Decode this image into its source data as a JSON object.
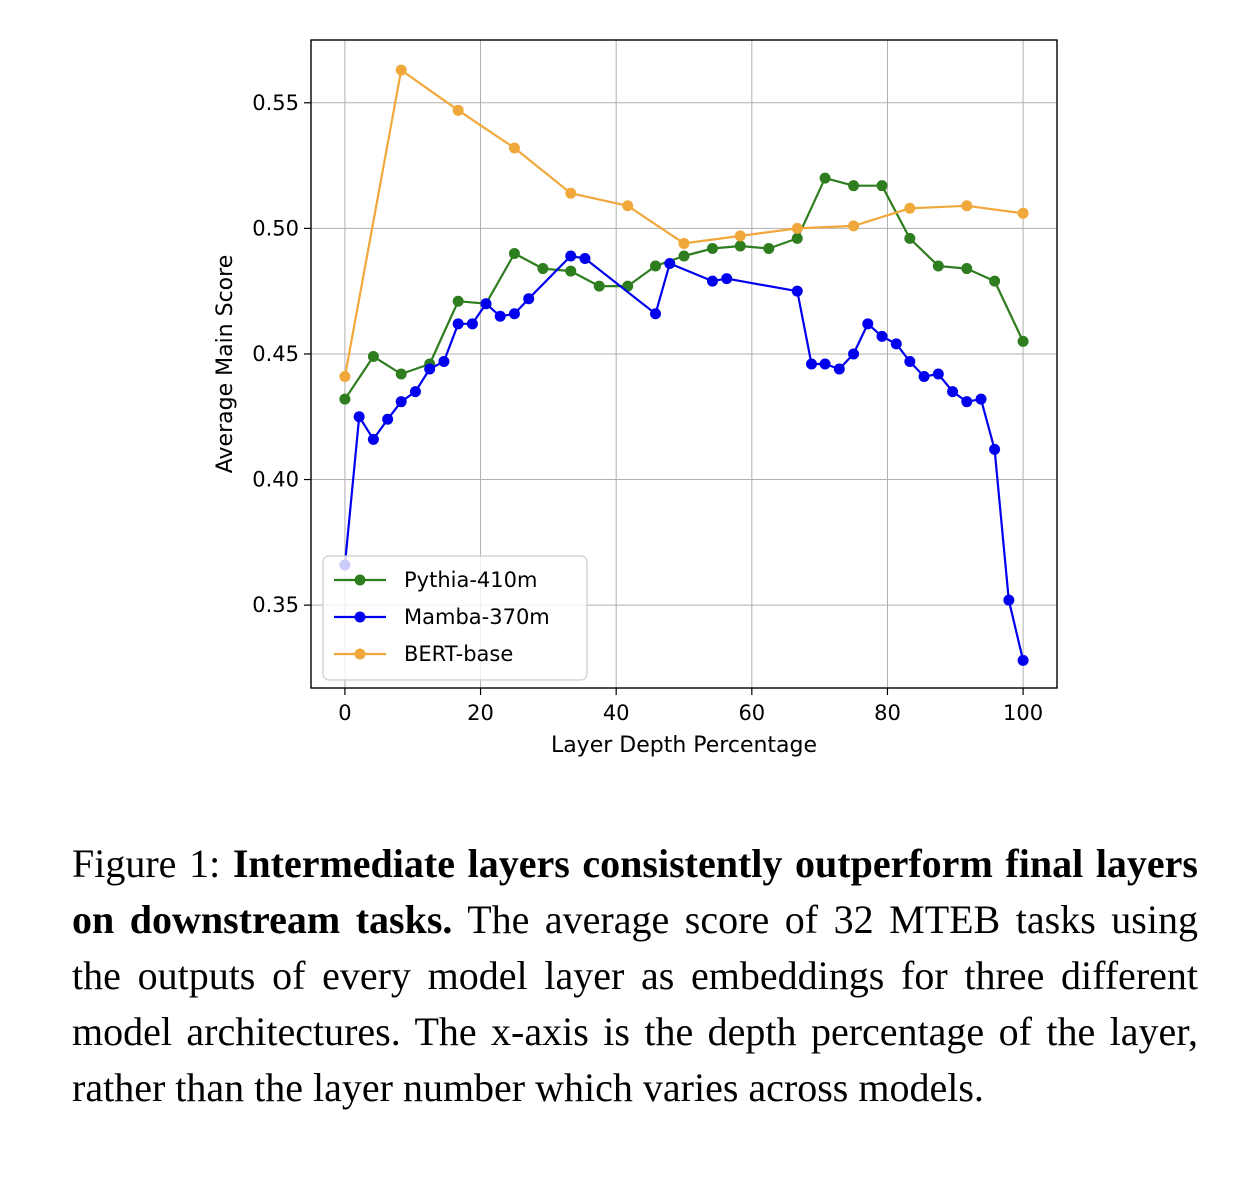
{
  "chart_data": {
    "type": "line",
    "xlabel": "Layer Depth Percentage",
    "ylabel": "Average Main Score",
    "xlim": [
      -5,
      105
    ],
    "ylim": [
      0.317,
      0.575
    ],
    "xticks": [
      0,
      20,
      40,
      60,
      80,
      100
    ],
    "yticks": [
      0.35,
      0.4,
      0.45,
      0.5,
      0.55
    ],
    "xtick_labels": [
      "0",
      "20",
      "40",
      "60",
      "80",
      "100"
    ],
    "ytick_labels": [
      "0.35",
      "0.40",
      "0.45",
      "0.50",
      "0.55"
    ],
    "grid": true,
    "legend_position": "lower-left",
    "series": [
      {
        "name": "Pythia-410m",
        "color": "#2e7d1f",
        "x": [
          0,
          4.2,
          8.3,
          12.5,
          16.7,
          20.8,
          25.0,
          29.2,
          33.3,
          37.5,
          41.7,
          45.8,
          50.0,
          54.2,
          58.3,
          62.5,
          66.7,
          70.8,
          75.0,
          79.2,
          83.3,
          87.5,
          91.7,
          95.8,
          100
        ],
        "y": [
          0.432,
          0.449,
          0.442,
          0.446,
          0.471,
          0.47,
          0.49,
          0.484,
          0.483,
          0.477,
          0.477,
          0.485,
          0.489,
          0.492,
          0.493,
          0.492,
          0.496,
          0.52,
          0.517,
          0.517,
          0.496,
          0.485,
          0.484,
          0.479,
          0.455
        ]
      },
      {
        "name": "Mamba-370m",
        "color": "#0000ee",
        "x": [
          0,
          2.1,
          4.2,
          6.3,
          8.3,
          10.4,
          12.5,
          14.6,
          16.7,
          18.8,
          20.8,
          22.9,
          25.0,
          27.1,
          33.3,
          35.4,
          45.8,
          47.9,
          54.2,
          56.3,
          66.7,
          68.8,
          70.8,
          72.9,
          75.0,
          77.1,
          79.2,
          81.3,
          83.3,
          85.4,
          87.5,
          89.6,
          91.7,
          93.8,
          95.8,
          97.9,
          100
        ],
        "y": [
          0.366,
          0.425,
          0.416,
          0.424,
          0.431,
          0.435,
          0.444,
          0.447,
          0.462,
          0.462,
          0.47,
          0.465,
          0.466,
          0.472,
          0.489,
          0.488,
          0.466,
          0.486,
          0.479,
          0.48,
          0.475,
          0.446,
          0.446,
          0.444,
          0.45,
          0.462,
          0.457,
          0.454,
          0.447,
          0.441,
          0.442,
          0.435,
          0.431,
          0.432,
          0.412,
          0.352,
          0.328
        ]
      },
      {
        "name": "BERT-base",
        "color": "#f0a83a",
        "x": [
          0,
          8.3,
          16.7,
          25.0,
          33.3,
          41.7,
          50.0,
          58.3,
          66.7,
          75.0,
          83.3,
          91.7,
          100
        ],
        "y": [
          0.441,
          0.563,
          0.547,
          0.532,
          0.514,
          0.509,
          0.494,
          0.497,
          0.5,
          0.501,
          0.508,
          0.509,
          0.506
        ]
      }
    ]
  },
  "caption": {
    "prefix": "Figure 1: ",
    "bold": "Intermediate layers consistently outperform final layers on downstream tasks.",
    "rest": " The average score of 32 MTEB tasks using the outputs of every model layer as embeddings for three different model architectures.  The x-axis is the depth percentage of the layer, rather than the layer number which varies across models."
  }
}
